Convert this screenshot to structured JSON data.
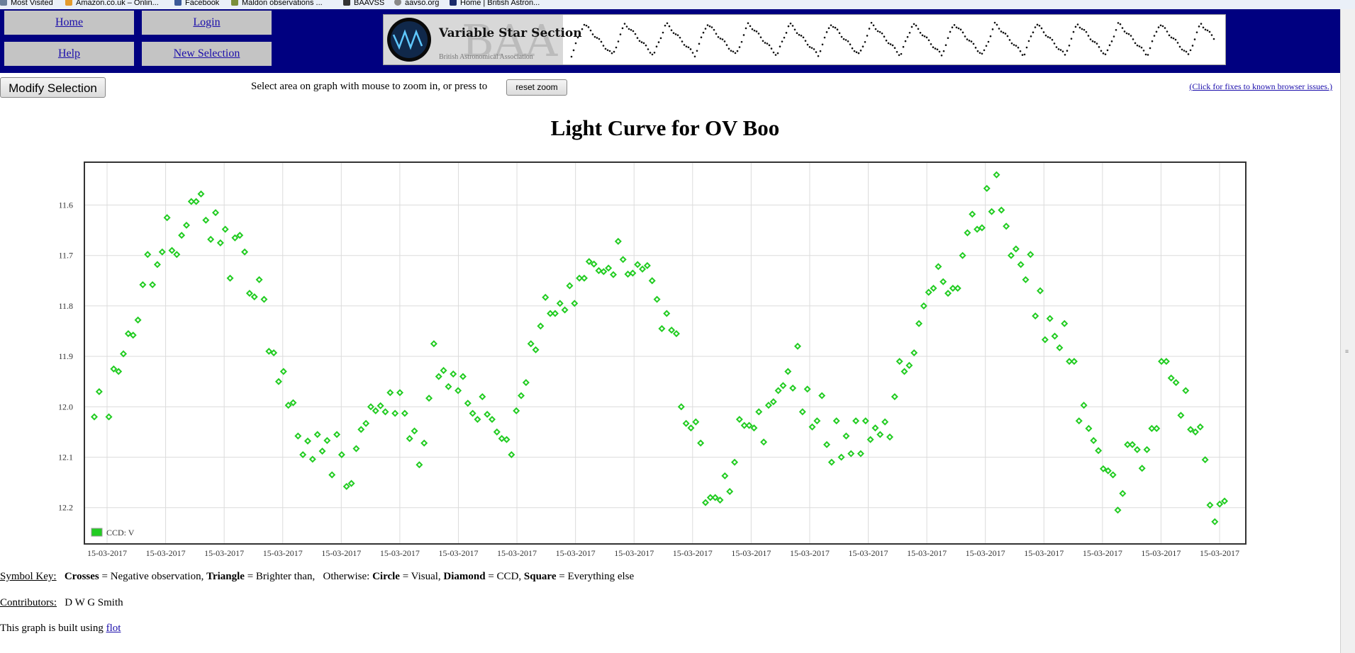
{
  "bookmarks": [
    {
      "label": "Most Visited",
      "icon": "gear-icon",
      "color": "#6a7f9a"
    },
    {
      "label": "Amazon.co.uk – Onlin...",
      "icon": "amazon-icon",
      "color": "#e49b2d"
    },
    {
      "label": "Facebook",
      "icon": "facebook-icon",
      "color": "#3b5998"
    },
    {
      "label": "Maldon observations ...",
      "icon": "page-icon",
      "color": "#7a8f3b"
    },
    {
      "label": "BAAVSS",
      "icon": "page-icon",
      "color": "#333333"
    },
    {
      "label": "aavso.org",
      "icon": "globe-icon",
      "color": "#888888"
    },
    {
      "label": "Home | British Astron...",
      "icon": "page-icon",
      "color": "#1a2a6a"
    }
  ],
  "nav": {
    "home": "Home",
    "login": "Login",
    "help": "Help",
    "new_selection": "New Selection"
  },
  "banner": {
    "title": "Variable Star Section",
    "logo_text": "BAA",
    "subtitle": "British Astronomical Association"
  },
  "toolbar": {
    "modify_selection": "Modify Selection",
    "zoom_hint": "Select area on graph with mouse to zoom in, or press to",
    "reset_zoom": "reset zoom",
    "fixes_link": "(Click for fixes to known browser issues.)"
  },
  "chart_data": {
    "type": "scatter",
    "title": "Light Curve for OV Boo",
    "xlabel": "",
    "ylabel": "",
    "y_inverted": true,
    "ylim": [
      12.272,
      11.515
    ],
    "y_ticks": [
      "11.6",
      "11.7",
      "11.8",
      "11.9",
      "12.0",
      "12.1",
      "12.2"
    ],
    "x_tick_labels": [
      "15-03-2017",
      "15-03-2017",
      "15-03-2017",
      "15-03-2017",
      "15-03-2017",
      "15-03-2017",
      "15-03-2017",
      "15-03-2017",
      "15-03-2017",
      "15-03-2017",
      "15-03-2017",
      "15-03-2017",
      "15-03-2017",
      "15-03-2017",
      "15-03-2017",
      "15-03-2017",
      "15-03-2017",
      "15-03-2017",
      "15-03-2017",
      "15-03-2017"
    ],
    "grid": true,
    "legend_position": "bottom-left",
    "series": [
      {
        "name": "CCD: V",
        "color": "#22cc22",
        "marker": "diamond",
        "points": [
          [
            1,
            12.02
          ],
          [
            2,
            11.97
          ],
          [
            4,
            12.02
          ],
          [
            5,
            11.925
          ],
          [
            6,
            11.93
          ],
          [
            7,
            11.895
          ],
          [
            8,
            11.855
          ],
          [
            9,
            11.858
          ],
          [
            10,
            11.828
          ],
          [
            11,
            11.758
          ],
          [
            12,
            11.698
          ],
          [
            13,
            11.758
          ],
          [
            14,
            11.718
          ],
          [
            15,
            11.693
          ],
          [
            16,
            11.625
          ],
          [
            17,
            11.69
          ],
          [
            18,
            11.698
          ],
          [
            19,
            11.66
          ],
          [
            20,
            11.64
          ],
          [
            21,
            11.593
          ],
          [
            22,
            11.593
          ],
          [
            23,
            11.578
          ],
          [
            24,
            11.63
          ],
          [
            25,
            11.668
          ],
          [
            26,
            11.615
          ],
          [
            27,
            11.675
          ],
          [
            28,
            11.648
          ],
          [
            29,
            11.745
          ],
          [
            30,
            11.665
          ],
          [
            31,
            11.66
          ],
          [
            32,
            11.693
          ],
          [
            33,
            11.775
          ],
          [
            34,
            11.782
          ],
          [
            35,
            11.748
          ],
          [
            36,
            11.787
          ],
          [
            37,
            11.89
          ],
          [
            38,
            11.893
          ],
          [
            39,
            11.95
          ],
          [
            40,
            11.93
          ],
          [
            41,
            11.997
          ],
          [
            42,
            11.992
          ],
          [
            43,
            12.058
          ],
          [
            44,
            12.095
          ],
          [
            45,
            12.068
          ],
          [
            46,
            12.104
          ],
          [
            47,
            12.055
          ],
          [
            48,
            12.088
          ],
          [
            49,
            12.067
          ],
          [
            50,
            12.135
          ],
          [
            51,
            12.055
          ],
          [
            52,
            12.095
          ],
          [
            53,
            12.158
          ],
          [
            54,
            12.152
          ],
          [
            55,
            12.083
          ],
          [
            56,
            12.045
          ],
          [
            57,
            12.033
          ],
          [
            58,
            12.0
          ],
          [
            59,
            12.008
          ],
          [
            60,
            11.998
          ],
          [
            61,
            12.01
          ],
          [
            62,
            11.972
          ],
          [
            63,
            12.013
          ],
          [
            64,
            11.972
          ],
          [
            65,
            12.013
          ],
          [
            66,
            12.063
          ],
          [
            67,
            12.048
          ],
          [
            68,
            12.115
          ],
          [
            69,
            12.072
          ],
          [
            70,
            11.983
          ],
          [
            71,
            11.875
          ],
          [
            72,
            11.94
          ],
          [
            73,
            11.928
          ],
          [
            74,
            11.96
          ],
          [
            75,
            11.935
          ],
          [
            76,
            11.968
          ],
          [
            77,
            11.94
          ],
          [
            78,
            11.993
          ],
          [
            79,
            12.013
          ],
          [
            80,
            12.025
          ],
          [
            81,
            11.98
          ],
          [
            82,
            12.015
          ],
          [
            83,
            12.025
          ],
          [
            84,
            12.05
          ],
          [
            85,
            12.063
          ],
          [
            86,
            12.065
          ],
          [
            87,
            12.095
          ],
          [
            88,
            12.008
          ],
          [
            89,
            11.978
          ],
          [
            90,
            11.952
          ],
          [
            91,
            11.875
          ],
          [
            92,
            11.887
          ],
          [
            93,
            11.84
          ],
          [
            94,
            11.783
          ],
          [
            95,
            11.815
          ],
          [
            96,
            11.815
          ],
          [
            97,
            11.795
          ],
          [
            98,
            11.808
          ],
          [
            99,
            11.76
          ],
          [
            100,
            11.795
          ],
          [
            101,
            11.745
          ],
          [
            102,
            11.745
          ],
          [
            103,
            11.712
          ],
          [
            104,
            11.717
          ],
          [
            105,
            11.73
          ],
          [
            106,
            11.732
          ],
          [
            107,
            11.725
          ],
          [
            108,
            11.738
          ],
          [
            109,
            11.672
          ],
          [
            110,
            11.708
          ],
          [
            111,
            11.737
          ],
          [
            112,
            11.735
          ],
          [
            113,
            11.718
          ],
          [
            114,
            11.727
          ],
          [
            115,
            11.72
          ],
          [
            116,
            11.75
          ],
          [
            117,
            11.787
          ],
          [
            118,
            11.845
          ],
          [
            119,
            11.815
          ],
          [
            120,
            11.848
          ],
          [
            121,
            11.855
          ],
          [
            122,
            12.0
          ],
          [
            123,
            12.033
          ],
          [
            124,
            12.042
          ],
          [
            125,
            12.03
          ],
          [
            126,
            12.072
          ],
          [
            127,
            12.19
          ],
          [
            128,
            12.18
          ],
          [
            129,
            12.18
          ],
          [
            130,
            12.185
          ],
          [
            131,
            12.137
          ],
          [
            132,
            12.168
          ],
          [
            133,
            12.11
          ],
          [
            134,
            12.025
          ],
          [
            135,
            12.037
          ],
          [
            136,
            12.037
          ],
          [
            137,
            12.042
          ],
          [
            138,
            12.01
          ],
          [
            139,
            12.07
          ],
          [
            140,
            11.997
          ],
          [
            141,
            11.99
          ],
          [
            142,
            11.968
          ],
          [
            143,
            11.958
          ],
          [
            144,
            11.93
          ],
          [
            145,
            11.963
          ],
          [
            146,
            11.88
          ],
          [
            147,
            12.01
          ],
          [
            148,
            11.965
          ],
          [
            149,
            12.04
          ],
          [
            150,
            12.028
          ],
          [
            151,
            11.978
          ],
          [
            152,
            12.075
          ],
          [
            153,
            12.11
          ],
          [
            154,
            12.028
          ],
          [
            155,
            12.1
          ],
          [
            156,
            12.058
          ],
          [
            157,
            12.093
          ],
          [
            158,
            12.028
          ],
          [
            159,
            12.093
          ],
          [
            160,
            12.028
          ],
          [
            161,
            12.065
          ],
          [
            162,
            12.042
          ],
          [
            163,
            12.055
          ],
          [
            164,
            12.03
          ],
          [
            165,
            12.06
          ],
          [
            166,
            11.98
          ],
          [
            167,
            11.91
          ],
          [
            168,
            11.93
          ],
          [
            169,
            11.918
          ],
          [
            170,
            11.893
          ],
          [
            171,
            11.835
          ],
          [
            172,
            11.8
          ],
          [
            173,
            11.773
          ],
          [
            174,
            11.765
          ],
          [
            175,
            11.722
          ],
          [
            176,
            11.752
          ],
          [
            177,
            11.775
          ],
          [
            178,
            11.765
          ],
          [
            179,
            11.765
          ],
          [
            180,
            11.7
          ],
          [
            181,
            11.655
          ],
          [
            182,
            11.618
          ],
          [
            183,
            11.648
          ],
          [
            184,
            11.645
          ],
          [
            185,
            11.567
          ],
          [
            186,
            11.613
          ],
          [
            187,
            11.54
          ],
          [
            188,
            11.61
          ],
          [
            189,
            11.642
          ],
          [
            190,
            11.7
          ],
          [
            191,
            11.687
          ],
          [
            192,
            11.718
          ],
          [
            193,
            11.748
          ],
          [
            194,
            11.698
          ],
          [
            195,
            11.82
          ],
          [
            196,
            11.77
          ],
          [
            197,
            11.867
          ],
          [
            198,
            11.825
          ],
          [
            199,
            11.86
          ],
          [
            200,
            11.883
          ],
          [
            201,
            11.835
          ],
          [
            202,
            11.91
          ],
          [
            203,
            11.91
          ],
          [
            204,
            12.028
          ],
          [
            205,
            11.997
          ],
          [
            206,
            12.043
          ],
          [
            207,
            12.067
          ],
          [
            208,
            12.087
          ],
          [
            209,
            12.123
          ],
          [
            210,
            12.127
          ],
          [
            211,
            12.135
          ],
          [
            212,
            12.205
          ],
          [
            213,
            12.172
          ],
          [
            214,
            12.075
          ],
          [
            215,
            12.075
          ],
          [
            216,
            12.085
          ],
          [
            217,
            12.122
          ],
          [
            218,
            12.085
          ],
          [
            219,
            12.043
          ],
          [
            220,
            12.043
          ],
          [
            221,
            11.91
          ],
          [
            222,
            11.91
          ],
          [
            223,
            11.943
          ],
          [
            224,
            11.952
          ],
          [
            225,
            12.017
          ],
          [
            226,
            11.968
          ],
          [
            227,
            12.045
          ],
          [
            228,
            12.05
          ],
          [
            229,
            12.04
          ],
          [
            230,
            12.105
          ],
          [
            231,
            12.195
          ],
          [
            232,
            12.228
          ],
          [
            233,
            12.193
          ],
          [
            234,
            12.187
          ]
        ]
      }
    ]
  },
  "footer": {
    "symbol_key_label": "Symbol Key:",
    "crosses": "Crosses",
    "crosses_desc": "= Negative observation,",
    "triangle": "Triangle",
    "triangle_desc": "= Brighter than,",
    "otherwise": "Otherwise:",
    "circle": "Circle",
    "circle_desc": "= Visual,",
    "diamond": "Diamond",
    "diamond_desc": "= CCD,",
    "square": "Square",
    "square_desc": "= Everything else",
    "contributors_label": "Contributors:",
    "contributors": "D W G Smith",
    "built_prefix": "This graph is built using",
    "built_link": "flot"
  }
}
